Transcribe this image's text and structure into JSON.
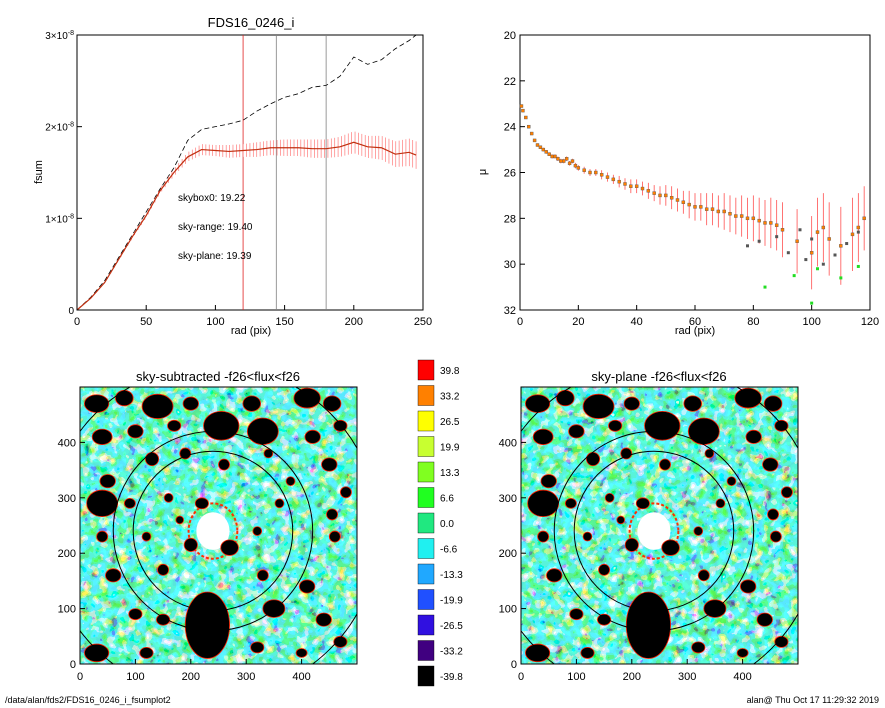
{
  "chart_data": [
    {
      "type": "line",
      "title": "FDS16_0246_i",
      "xlabel": "rad (pix)",
      "ylabel": "fsum",
      "xlim": [
        0,
        250
      ],
      "ylim": [
        0,
        3e-08
      ],
      "xticks": [
        "0",
        "50",
        "100",
        "150",
        "200",
        "250"
      ],
      "yticks": [
        {
          "base": "0",
          "exp": ""
        },
        {
          "base": "1×10",
          "exp": "-8"
        },
        {
          "base": "2×10",
          "exp": "-8"
        },
        {
          "base": "3×10",
          "exp": "-8"
        }
      ],
      "vlines": [
        {
          "x": 120,
          "color": "#e02020"
        },
        {
          "x": 144,
          "color": "#808080"
        },
        {
          "x": 180,
          "color": "#808080"
        }
      ],
      "annotations": [
        {
          "text": "skybox0: 19.22",
          "color": "#000000"
        },
        {
          "text": "sky-range: 19.40",
          "color": "#e02020"
        },
        {
          "text": "sky-plane: 19.39",
          "color": "#22dd22"
        }
      ],
      "series": [
        {
          "style": "dashed",
          "color": "#000000",
          "x": [
            0,
            10,
            20,
            30,
            40,
            50,
            60,
            70,
            80,
            90,
            100,
            110,
            120,
            130,
            140,
            150,
            160,
            170,
            180,
            190,
            200,
            210,
            220,
            230,
            240,
            245
          ],
          "y": [
            0,
            1.4e-09,
            3.2e-09,
            5.7e-09,
            8.2e-09,
            1.07e-08,
            1.32e-08,
            1.55e-08,
            1.85e-08,
            1.97e-08,
            2e-08,
            2.03e-08,
            2.07e-08,
            2.17e-08,
            2.25e-08,
            2.32e-08,
            2.36e-08,
            2.43e-08,
            2.45e-08,
            2.55e-08,
            2.76e-08,
            2.68e-08,
            2.73e-08,
            2.85e-08,
            2.94e-08,
            3e-08
          ]
        },
        {
          "style": "solid",
          "color": "#c03010",
          "errcolor": "#ff7a7a",
          "x": [
            0,
            10,
            20,
            30,
            40,
            50,
            60,
            70,
            80,
            90,
            100,
            110,
            120,
            130,
            140,
            150,
            160,
            170,
            180,
            190,
            200,
            210,
            220,
            230,
            240,
            245
          ],
          "y": [
            0,
            1.3e-09,
            3e-09,
            5.5e-09,
            8e-09,
            1.03e-08,
            1.3e-08,
            1.5e-08,
            1.67e-08,
            1.75e-08,
            1.74e-08,
            1.73e-08,
            1.74e-08,
            1.75e-08,
            1.77e-08,
            1.77e-08,
            1.77e-08,
            1.76e-08,
            1.76e-08,
            1.78e-08,
            1.83e-08,
            1.78e-08,
            1.77e-08,
            1.7e-08,
            1.72e-08,
            1.69e-08
          ],
          "err": [
            0,
            5e-11,
            1e-10,
            1.5e-10,
            2e-10,
            2.5e-10,
            3e-10,
            4e-10,
            5e-10,
            6e-10,
            6e-10,
            7e-10,
            7e-10,
            8e-10,
            8e-10,
            9e-10,
            9e-10,
            1e-09,
            1e-09,
            1.1e-09,
            1.2e-09,
            1.2e-09,
            1.3e-09,
            1.4e-09,
            1.5e-09,
            1.5e-09
          ]
        }
      ]
    },
    {
      "type": "scatter",
      "title": "",
      "xlabel": "rad (pix)",
      "ylabel": "μ",
      "xlim": [
        0,
        120
      ],
      "ylim": [
        32,
        20
      ],
      "xticks": [
        "0",
        "20",
        "40",
        "60",
        "80",
        "100",
        "120"
      ],
      "yticks": [
        "20",
        "22",
        "24",
        "26",
        "28",
        "30",
        "32"
      ],
      "series": [
        {
          "name": "",
          "color": "#ff7f00",
          "x": [
            0.5,
            1,
            2,
            3,
            4,
            5,
            6,
            7,
            8,
            9,
            10,
            11,
            12,
            13,
            14,
            15,
            16,
            17,
            18,
            19,
            20,
            22,
            24,
            26,
            28,
            30,
            32,
            34,
            36,
            38,
            40,
            42,
            44,
            46,
            48,
            50,
            52,
            54,
            56,
            58,
            60,
            62,
            64,
            66,
            68,
            70,
            72,
            74,
            76,
            78,
            80,
            82,
            84,
            86,
            88,
            90,
            95,
            100,
            102,
            104,
            106,
            110,
            114,
            116,
            118
          ],
          "y": [
            23.1,
            23.3,
            23.6,
            24.0,
            24.3,
            24.6,
            24.8,
            24.9,
            25.0,
            25.1,
            25.2,
            25.3,
            25.3,
            25.4,
            25.5,
            25.5,
            25.4,
            25.6,
            25.5,
            25.7,
            25.8,
            25.9,
            26.0,
            26.0,
            26.1,
            26.2,
            26.3,
            26.4,
            26.5,
            26.6,
            26.6,
            26.7,
            26.8,
            26.9,
            27.0,
            27.0,
            27.1,
            27.2,
            27.3,
            27.4,
            27.5,
            27.5,
            27.6,
            27.6,
            27.7,
            27.7,
            27.8,
            27.9,
            27.9,
            28.0,
            28.0,
            28.1,
            28.2,
            28.2,
            28.3,
            28.5,
            29.0,
            29.5,
            28.6,
            28.4,
            28.9,
            29.2,
            28.7,
            28.4,
            28.0
          ],
          "err": [
            0.05,
            0.05,
            0.05,
            0.06,
            0.06,
            0.06,
            0.07,
            0.07,
            0.08,
            0.08,
            0.08,
            0.09,
            0.09,
            0.1,
            0.1,
            0.1,
            0.1,
            0.1,
            0.1,
            0.12,
            0.12,
            0.15,
            0.15,
            0.15,
            0.2,
            0.2,
            0.2,
            0.25,
            0.25,
            0.3,
            0.3,
            0.3,
            0.35,
            0.35,
            0.4,
            0.45,
            0.5,
            0.5,
            0.5,
            0.6,
            0.6,
            0.6,
            0.7,
            0.7,
            0.7,
            0.8,
            0.8,
            0.8,
            0.9,
            0.9,
            1.0,
            1.0,
            1.0,
            1.1,
            1.1,
            1.2,
            1.4,
            1.6,
            1.5,
            1.5,
            1.6,
            1.7,
            1.6,
            1.5,
            1.4
          ]
        },
        {
          "name": "",
          "color": "#555555",
          "x": [
            78,
            82,
            88,
            92,
            96,
            98,
            100,
            104,
            108,
            112,
            116
          ],
          "y": [
            29.2,
            29.0,
            28.8,
            29.5,
            28.5,
            29.8,
            28.9,
            30.0,
            29.6,
            29.1,
            28.6
          ]
        },
        {
          "name": "",
          "color": "#22dd22",
          "x": [
            84,
            94,
            100,
            102,
            110,
            116
          ],
          "y": [
            31.0,
            30.5,
            31.7,
            30.2,
            30.6,
            30.1
          ]
        }
      ]
    },
    {
      "type": "heatmap",
      "title": "sky-subtracted -f26<flux<f26",
      "xlim": [
        0,
        500
      ],
      "ylim": [
        0,
        500
      ],
      "xticks": [
        "0",
        "100",
        "200",
        "300",
        "400"
      ],
      "yticks": [
        "0",
        "100",
        "200",
        "300",
        "400"
      ],
      "center": [
        240,
        240
      ],
      "ellipses": [
        [
          144,
          144
        ],
        [
          180,
          180
        ],
        [
          300,
          300
        ]
      ]
    },
    {
      "type": "heatmap",
      "title": "sky-plane -f26<flux<f26",
      "xlim": [
        0,
        500
      ],
      "ylim": [
        0,
        500
      ],
      "xticks": [
        "0",
        "100",
        "200",
        "300",
        "400"
      ],
      "yticks": [
        "0",
        "100",
        "200",
        "300",
        "400"
      ],
      "center": [
        240,
        240
      ],
      "ellipses": [
        [
          144,
          144
        ],
        [
          180,
          180
        ],
        [
          300,
          300
        ]
      ]
    },
    {
      "type": "colorbar",
      "levels": [
        "39.8",
        "33.2",
        "26.5",
        "19.9",
        "13.3",
        "6.6",
        "0.0",
        "-6.6",
        "-13.3",
        "-19.9",
        "-26.5",
        "-33.2",
        "-39.8"
      ],
      "colors": [
        "#ff0000",
        "#ff8000",
        "#ffff00",
        "#c8ff30",
        "#80ff20",
        "#20ff20",
        "#20e880",
        "#20f0f0",
        "#20a8ff",
        "#2050ff",
        "#3010e0",
        "#400080",
        "#000000"
      ]
    }
  ],
  "footer": {
    "path": "/data/alan/fds2/FDS16_0246_i_fsumplot2",
    "stamp": "alan@  Thu Oct 17 11:29:32 2019"
  }
}
